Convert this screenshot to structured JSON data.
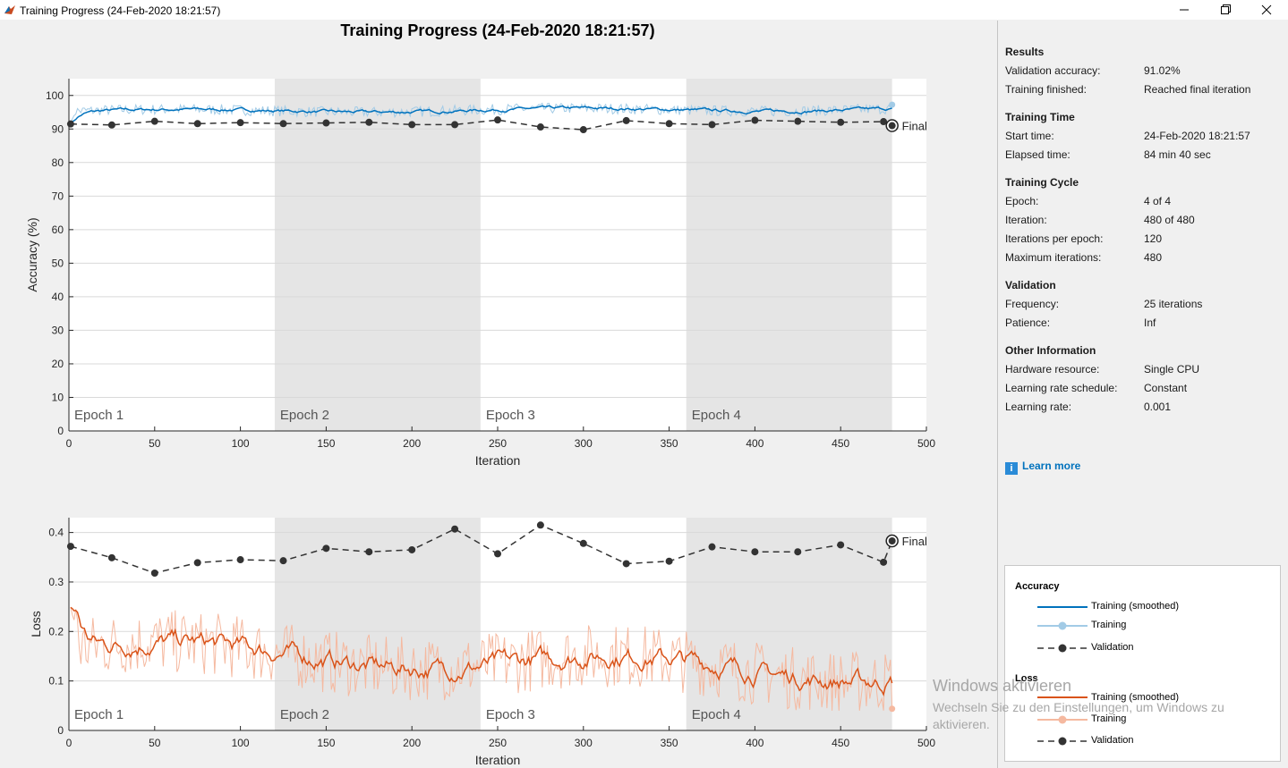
{
  "window": {
    "title": "Training Progress (24-Feb-2020 18:21:57)",
    "controls": {
      "minimize_icon": "minimize-icon",
      "maximize_icon": "restore-icon",
      "close_icon": "close-icon"
    }
  },
  "main_title": "Training Progress (24-Feb-2020 18:21:57)",
  "chart_data": [
    {
      "type": "line",
      "ylabel": "Accuracy (%)",
      "xlabel": "Iteration",
      "xlim": [
        0,
        500
      ],
      "ylim": [
        0,
        105
      ],
      "xticks": [
        0,
        50,
        100,
        150,
        200,
        250,
        300,
        350,
        400,
        450,
        500
      ],
      "yticks": [
        0,
        10,
        20,
        30,
        40,
        50,
        60,
        70,
        80,
        90,
        100
      ],
      "epochs": [
        "Epoch 1",
        "Epoch 2",
        "Epoch 3",
        "Epoch 4"
      ],
      "epoch_iterations": 120,
      "final_label": "Final",
      "grid": true,
      "series": [
        {
          "name": "Training (smoothed)",
          "color": "#0072bd",
          "kind": "smoothed",
          "mean": 95.6,
          "noise": 0.5
        },
        {
          "name": "Training",
          "color": "#a2cbe6",
          "kind": "raw",
          "mean": 95.6,
          "noise": 1.2
        },
        {
          "name": "Validation",
          "color": "#333333",
          "kind": "validation",
          "x": [
            1,
            25,
            50,
            75,
            100,
            125,
            150,
            175,
            200,
            225,
            250,
            275,
            300,
            325,
            350,
            375,
            400,
            425,
            450,
            475,
            480
          ],
          "y": [
            91.5,
            91.2,
            92.3,
            91.6,
            91.9,
            91.6,
            91.8,
            92.0,
            91.3,
            91.3,
            92.7,
            90.6,
            89.8,
            92.5,
            91.6,
            91.3,
            92.6,
            92.3,
            92.0,
            92.2,
            91.0
          ]
        }
      ]
    },
    {
      "type": "line",
      "ylabel": "Loss",
      "xlabel": "Iteration",
      "xlim": [
        0,
        500
      ],
      "ylim": [
        0,
        0.43
      ],
      "xticks": [
        0,
        50,
        100,
        150,
        200,
        250,
        300,
        350,
        400,
        450,
        500
      ],
      "yticks": [
        0,
        0.1,
        0.2,
        0.3,
        0.4
      ],
      "epochs": [
        "Epoch 1",
        "Epoch 2",
        "Epoch 3",
        "Epoch 4"
      ],
      "epoch_iterations": 120,
      "final_label": "Final",
      "grid": true,
      "series": [
        {
          "name": "Training (smoothed)",
          "color": "#d95319",
          "kind": "smoothed"
        },
        {
          "name": "Training",
          "color": "#f5b9a0",
          "kind": "raw"
        },
        {
          "name": "Validation",
          "color": "#333333",
          "kind": "validation",
          "x": [
            1,
            25,
            50,
            75,
            100,
            125,
            150,
            175,
            200,
            225,
            250,
            275,
            300,
            325,
            350,
            375,
            400,
            425,
            450,
            475,
            480
          ],
          "y": [
            0.372,
            0.349,
            0.318,
            0.339,
            0.345,
            0.343,
            0.368,
            0.361,
            0.365,
            0.407,
            0.357,
            0.415,
            0.378,
            0.337,
            0.342,
            0.371,
            0.361,
            0.361,
            0.375,
            0.34,
            0.383
          ]
        }
      ]
    }
  ],
  "panel": {
    "results": {
      "title": "Results",
      "rows": [
        {
          "label": "Validation accuracy:",
          "value": "91.02%"
        },
        {
          "label": "Training finished:",
          "value": "Reached final iteration"
        }
      ]
    },
    "training_time": {
      "title": "Training Time",
      "rows": [
        {
          "label": "Start time:",
          "value": "24-Feb-2020 18:21:57"
        },
        {
          "label": "Elapsed time:",
          "value": "84 min 40 sec"
        }
      ]
    },
    "training_cycle": {
      "title": "Training Cycle",
      "rows": [
        {
          "label": "Epoch:",
          "value": "4 of 4"
        },
        {
          "label": "Iteration:",
          "value": "480 of 480"
        },
        {
          "label": "Iterations per epoch:",
          "value": "120"
        },
        {
          "label": "Maximum iterations:",
          "value": "480"
        }
      ]
    },
    "validation": {
      "title": "Validation",
      "rows": [
        {
          "label": "Frequency:",
          "value": "25 iterations"
        },
        {
          "label": "Patience:",
          "value": "Inf"
        }
      ]
    },
    "other": {
      "title": "Other Information",
      "rows": [
        {
          "label": "Hardware resource:",
          "value": "Single CPU"
        },
        {
          "label": "Learning rate schedule:",
          "value": "Constant"
        },
        {
          "label": "Learning rate:",
          "value": "0.001"
        }
      ]
    },
    "learn_more": "Learn more",
    "info_icon": "i"
  },
  "legend": {
    "accuracy_title": "Accuracy",
    "loss_title": "Loss",
    "training_smoothed": "Training (smoothed)",
    "training": "Training",
    "validation": "Validation"
  },
  "watermark": {
    "line1": "Windows aktivieren",
    "line2": "Wechseln Sie zu den Einstellungen, um Windows zu aktivieren."
  },
  "colors": {
    "accuracy_smoothed": "#0072bd",
    "accuracy_raw": "#a2cbe6",
    "loss_smoothed": "#d95319",
    "loss_raw": "#f5b9a0",
    "validation": "#333333",
    "epoch_shade": "#e5e5e5"
  }
}
